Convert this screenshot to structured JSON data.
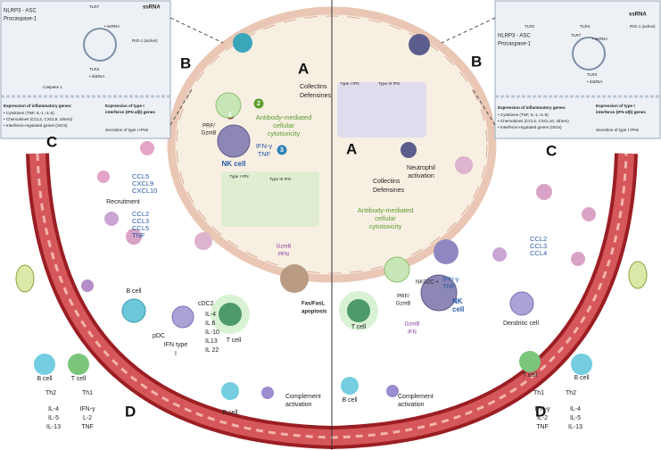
{
  "left": {
    "inset": {
      "nlrp3": "NLRP3 - ASC",
      "procaspase": "Procaspase-1",
      "tlr7": "TLR7",
      "ssrna": "ssRNA",
      "ssrna_inner": "• ssRNA",
      "rig": "RIG-1 (active)",
      "tlr3": "TLR3",
      "dsdna": "• dsDNA",
      "caspase": "Caspase 1",
      "inflammatory_title": "Expression of inflammatory genes:",
      "inflammatory": [
        "• Cytokines (TNF, IL-1, IL-6)",
        "• Chemokines (CCL2, CXCL9, others)",
        "• Interferon-regulated genes (ISGs)"
      ],
      "ifn_title": [
        "Expression of type I",
        "interferon (IFN α/β) genes"
      ],
      "secretion": "Secretion of type I IFNs"
    },
    "letters": {
      "a": "A",
      "b": "B",
      "c": "C",
      "d": "D"
    },
    "steps": [
      "1",
      "2",
      "3"
    ],
    "collectins": [
      "Collectins",
      "Defensines"
    ],
    "prf": [
      "PRF/",
      "GzmB"
    ],
    "adcc": [
      "Antibody-mediated",
      "cellular",
      "cytotoxicity"
    ],
    "ifn_tnf": [
      "IFN-γ",
      "TNF"
    ],
    "nk": "NK cell",
    "chemokines1": [
      "CCL5",
      "CXCL9",
      "CXCL10"
    ],
    "recruitment": "Recruitment",
    "chemokines2": [
      "CCL2",
      "CCL3",
      "CCL5",
      "TNF"
    ],
    "type1": "Type I IFN",
    "type3": "Type III IFN",
    "gzmb": [
      "GzmB",
      "PFN"
    ],
    "fas": [
      "Fas/FasL",
      "apoptosis"
    ],
    "tcell": "T cell",
    "bcell": "B cell",
    "cdc2": "cDC2",
    "interleukins": [
      "IL-4",
      "IL 6",
      "IL-10",
      "IL13",
      "IL 22"
    ],
    "pdc": "pDC",
    "ifn_type": [
      "IFN type",
      "I"
    ],
    "complement": [
      "Complement",
      "activation"
    ],
    "bcell2": "B cell",
    "th": {
      "bcell": "B cell",
      "tcell": "T cell",
      "th2": "Th2",
      "th1": "Th1",
      "th2_out": [
        "IL-4",
        "IL-5",
        "IL-13"
      ],
      "th1_out": [
        "IFN-γ",
        "L-2",
        "TNF"
      ]
    }
  },
  "right": {
    "inset": {
      "tlr2": "TLR2",
      "tlr4": "TLR4",
      "nlrp3": "NLRP3 - ASC",
      "procaspase": "Procaspase-1",
      "tlr7": "TLR7",
      "ssrna": "ssRNA",
      "ssrna_inner": "• ssRNA",
      "rig": "RIG-1 (active)",
      "tlr3": "TLR3",
      "dsdna": "• dsDNA",
      "inflammatory_title": "Expression of inflammatory genes:",
      "inflammatory": [
        "• Cytokines (TNF, IL-1, IL-6)",
        "• Chemokines (CCL2, CXCL10, others)",
        "• Interferon-regulated genes (ISGs)"
      ],
      "ifn_title": [
        "Expression of type I",
        "interferon (IFN α/β) genes"
      ],
      "secretion": "Secretion of type I IFNs"
    },
    "letters": {
      "a": "A",
      "b": "B",
      "c": "C",
      "d": "D"
    },
    "type1": "Type I IFN",
    "type3": "Type III IFN",
    "neutrophil": [
      "Neutrophil",
      "activation"
    ],
    "collectins": [
      "Collectins",
      "Defensines"
    ],
    "adcc": [
      "Antibody-mediated",
      "cellular",
      "cytotoxicity"
    ],
    "nkg2c": "NKG2C +",
    "ifn_tnf": [
      "IFN-γ",
      "TNF"
    ],
    "nk": [
      "NK",
      "cell"
    ],
    "prf": [
      "PRF/",
      "GzmB"
    ],
    "tcell": "T cell",
    "gzmb": [
      "GzmB",
      "IFN"
    ],
    "dc": "Dendritic cell",
    "chemokines": [
      "CCL2",
      "CCL3",
      "CCL4"
    ],
    "bcell": "B cell",
    "complement": [
      "Complement",
      "activation"
    ],
    "th": {
      "tcell": "T cell",
      "bcell": "B cell",
      "th1": "Th1",
      "th2": "Th2",
      "th1_out": [
        "IFN-γ",
        "IL-2",
        "TNF"
      ],
      "th2_out": [
        "IL-4",
        "IL-5",
        "IL-13"
      ]
    }
  }
}
